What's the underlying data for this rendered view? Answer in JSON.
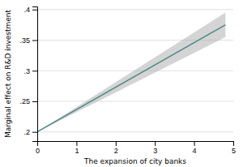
{
  "chart_data": {
    "type": "line",
    "xlabel": "The expansion of city banks",
    "ylabel": "Marginal effect on R&D investment",
    "x": [
      0,
      4.8
    ],
    "series": [
      {
        "color": "#4a8a82",
        "values": [
          0.2,
          0.375
        ],
        "lower": [
          0.2,
          0.355
        ],
        "upper": [
          0.2,
          0.395
        ]
      }
    ],
    "xlim": [
      0,
      5
    ],
    "ylim": [
      0.185,
      0.405
    ],
    "xticks": [
      0,
      1,
      2,
      3,
      4,
      5
    ],
    "yticks": [
      {
        "value": 0.2,
        "label": ".2"
      },
      {
        "value": 0.25,
        "label": ".25"
      },
      {
        "value": 0.3,
        "label": ".3"
      },
      {
        "value": 0.35,
        "label": ".35"
      },
      {
        "value": 0.4,
        "label": ".4"
      }
    ],
    "grid": true
  }
}
